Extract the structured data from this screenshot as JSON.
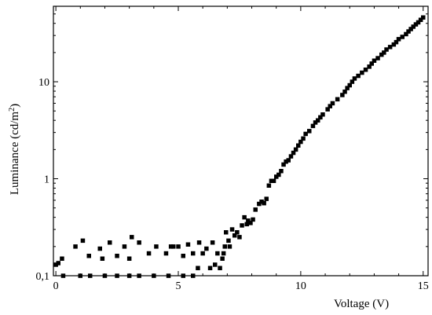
{
  "chart_data": {
    "type": "scatter",
    "xlabel": "Voltage (V)",
    "ylabel": "Luminance (cd/m",
    "ylabel_sup": "2",
    "ylabel_close": ")",
    "xlim": [
      -0.1,
      15.2
    ],
    "ylim": [
      0.1,
      60
    ],
    "yscale": "log",
    "grid": false,
    "x_ticks": [
      0,
      5,
      10,
      15
    ],
    "x_tick_labels": [
      "0",
      "5",
      "10",
      "15"
    ],
    "y_ticks": [
      0.1,
      1,
      10
    ],
    "y_tick_labels": [
      "0,1",
      "1",
      "10"
    ],
    "marker_color": "#000000",
    "series": [
      {
        "points": [
          [
            0.0,
            0.13
          ],
          [
            0.1,
            0.135
          ],
          [
            0.25,
            0.15
          ],
          [
            0.8,
            0.2
          ],
          [
            1.1,
            0.23
          ],
          [
            1.35,
            0.16
          ],
          [
            1.8,
            0.19
          ],
          [
            1.9,
            0.15
          ],
          [
            2.2,
            0.22
          ],
          [
            2.5,
            0.16
          ],
          [
            2.8,
            0.2
          ],
          [
            3.0,
            0.15
          ],
          [
            3.1,
            0.25
          ],
          [
            3.4,
            0.22
          ],
          [
            3.8,
            0.17
          ],
          [
            4.1,
            0.2
          ],
          [
            4.5,
            0.17
          ],
          [
            4.7,
            0.2
          ],
          [
            4.8,
            0.2
          ],
          [
            5.0,
            0.2
          ],
          [
            5.2,
            0.16
          ],
          [
            5.4,
            0.21
          ],
          [
            5.6,
            0.17
          ],
          [
            5.85,
            0.22
          ],
          [
            6.0,
            0.17
          ],
          [
            6.15,
            0.19
          ],
          [
            6.4,
            0.22
          ],
          [
            6.6,
            0.17
          ],
          [
            0.3,
            0.1
          ],
          [
            1.0,
            0.1
          ],
          [
            1.4,
            0.1
          ],
          [
            2.0,
            0.1
          ],
          [
            2.5,
            0.1
          ],
          [
            3.0,
            0.1
          ],
          [
            3.4,
            0.1
          ],
          [
            4.0,
            0.1
          ],
          [
            4.6,
            0.1
          ],
          [
            5.2,
            0.1
          ],
          [
            5.6,
            0.1
          ],
          [
            5.8,
            0.12
          ],
          [
            6.3,
            0.12
          ],
          [
            6.5,
            0.13
          ],
          [
            6.7,
            0.12
          ],
          [
            6.8,
            0.15
          ],
          [
            6.85,
            0.17
          ],
          [
            6.9,
            0.2
          ],
          [
            6.95,
            0.28
          ],
          [
            7.05,
            0.23
          ],
          [
            7.1,
            0.2
          ],
          [
            7.2,
            0.3
          ],
          [
            7.3,
            0.26
          ],
          [
            7.4,
            0.28
          ],
          [
            7.5,
            0.25
          ],
          [
            7.6,
            0.33
          ],
          [
            7.7,
            0.4
          ],
          [
            7.8,
            0.34
          ],
          [
            7.85,
            0.37
          ],
          [
            7.95,
            0.35
          ],
          [
            8.05,
            0.38
          ],
          [
            8.15,
            0.48
          ],
          [
            8.3,
            0.55
          ],
          [
            8.4,
            0.58
          ],
          [
            8.5,
            0.56
          ],
          [
            8.6,
            0.62
          ],
          [
            8.7,
            0.85
          ],
          [
            8.8,
            0.95
          ],
          [
            8.9,
            0.95
          ],
          [
            9.0,
            1.05
          ],
          [
            9.1,
            1.1
          ],
          [
            9.2,
            1.2
          ],
          [
            9.3,
            1.4
          ],
          [
            9.4,
            1.5
          ],
          [
            9.5,
            1.55
          ],
          [
            9.6,
            1.7
          ],
          [
            9.7,
            1.85
          ],
          [
            9.8,
            2.0
          ],
          [
            9.9,
            2.2
          ],
          [
            10.0,
            2.4
          ],
          [
            10.1,
            2.6
          ],
          [
            10.2,
            2.9
          ],
          [
            10.35,
            3.1
          ],
          [
            10.5,
            3.5
          ],
          [
            10.6,
            3.8
          ],
          [
            10.7,
            4.0
          ],
          [
            10.8,
            4.3
          ],
          [
            10.9,
            4.6
          ],
          [
            11.1,
            5.2
          ],
          [
            11.2,
            5.6
          ],
          [
            11.3,
            6.0
          ],
          [
            11.5,
            6.6
          ],
          [
            11.7,
            7.3
          ],
          [
            11.8,
            7.9
          ],
          [
            11.9,
            8.6
          ],
          [
            12.0,
            9.2
          ],
          [
            12.1,
            10.0
          ],
          [
            12.2,
            10.8
          ],
          [
            12.35,
            11.5
          ],
          [
            12.5,
            12.4
          ],
          [
            12.65,
            13.3
          ],
          [
            12.8,
            14.3
          ],
          [
            12.9,
            15.4
          ],
          [
            13.0,
            16.5
          ],
          [
            13.15,
            17.5
          ],
          [
            13.3,
            19.0
          ],
          [
            13.4,
            20.0
          ],
          [
            13.5,
            21.5
          ],
          [
            13.65,
            22.8
          ],
          [
            13.8,
            24.2
          ],
          [
            13.9,
            25.6
          ],
          [
            14.0,
            27.5
          ],
          [
            14.15,
            29.0
          ],
          [
            14.3,
            31.0
          ],
          [
            14.4,
            33.0
          ],
          [
            14.5,
            35.0
          ],
          [
            14.6,
            37.0
          ],
          [
            14.7,
            39.0
          ],
          [
            14.8,
            41.0
          ],
          [
            14.9,
            43.5
          ],
          [
            15.0,
            46.0
          ]
        ]
      }
    ]
  }
}
